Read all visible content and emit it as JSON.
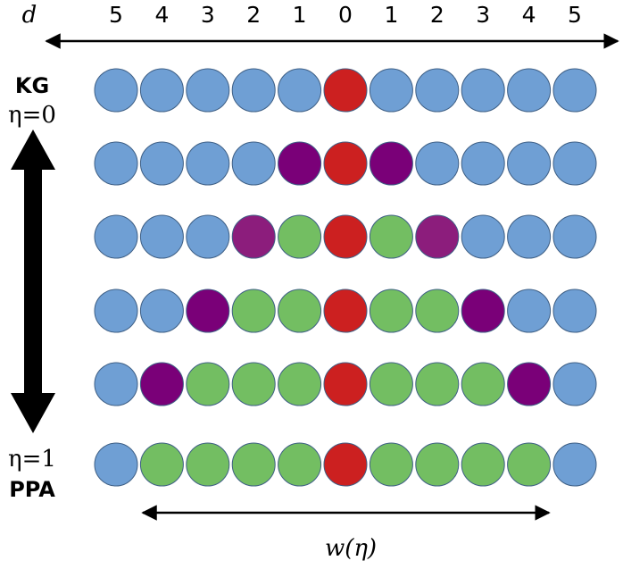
{
  "distance_label": "d",
  "distances": [
    "5",
    "4",
    "3",
    "2",
    "1",
    "0",
    "1",
    "2",
    "3",
    "4",
    "5"
  ],
  "top_label": {
    "name": "KG",
    "eta": "η=0"
  },
  "bottom_label": {
    "eta": "η=1",
    "name": "PPA"
  },
  "width_label": "w(η)"
}
